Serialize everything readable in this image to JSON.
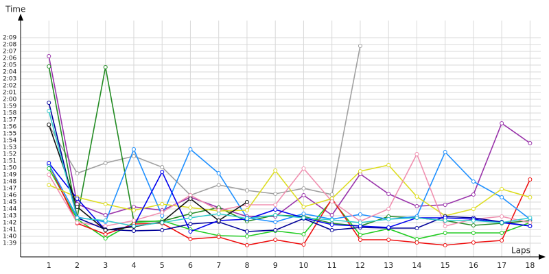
{
  "chart_data": {
    "type": "line",
    "y_label": "Time",
    "x_label": "Laps",
    "x": [
      1,
      2,
      3,
      4,
      5,
      6,
      7,
      8,
      9,
      10,
      11,
      12,
      13,
      14,
      15,
      16,
      17,
      18
    ],
    "xlim": [
      0,
      18.5
    ],
    "xticks": [
      1,
      2,
      3,
      4,
      5,
      6,
      7,
      8,
      9,
      10,
      11,
      12,
      13,
      14,
      15,
      16,
      17,
      18
    ],
    "ylim": [
      97,
      132
    ],
    "yticks": [
      {
        "value": 99,
        "label": "1:39"
      },
      {
        "value": 100,
        "label": "1:40"
      },
      {
        "value": 101,
        "label": "1:41"
      },
      {
        "value": 102,
        "label": "1:42"
      },
      {
        "value": 103,
        "label": "1:43"
      },
      {
        "value": 104,
        "label": "1:44"
      },
      {
        "value": 105,
        "label": "1:45"
      },
      {
        "value": 106,
        "label": "1:46"
      },
      {
        "value": 107,
        "label": "1:47"
      },
      {
        "value": 108,
        "label": "1:48"
      },
      {
        "value": 109,
        "label": "1:49"
      },
      {
        "value": 110,
        "label": "1:50"
      },
      {
        "value": 111,
        "label": "1:51"
      },
      {
        "value": 112,
        "label": "1:52"
      },
      {
        "value": 113,
        "label": "1:53"
      },
      {
        "value": 114,
        "label": "1:54"
      },
      {
        "value": 115,
        "label": "1:55"
      },
      {
        "value": 116,
        "label": "1:56"
      },
      {
        "value": 117,
        "label": "1:57"
      },
      {
        "value": 118,
        "label": "1:58"
      },
      {
        "value": 119,
        "label": "1:59"
      },
      {
        "value": 120,
        "label": "2:00"
      },
      {
        "value": 121,
        "label": "2:01"
      },
      {
        "value": 122,
        "label": "2:02"
      },
      {
        "value": 123,
        "label": "2:03"
      },
      {
        "value": 124,
        "label": "2:04"
      },
      {
        "value": 125,
        "label": "2:05"
      },
      {
        "value": 126,
        "label": "2:06"
      },
      {
        "value": 127,
        "label": "2:07"
      },
      {
        "value": 128,
        "label": "2:08"
      },
      {
        "value": 129,
        "label": "2:09"
      }
    ],
    "grid": true,
    "series": [
      {
        "color": "#a0a0a0",
        "values": [
          116.2,
          109.2,
          110.7,
          111.7,
          110.1,
          106,
          107.5,
          106.7,
          106.2,
          107,
          106.1,
          127.8,
          null,
          null,
          null,
          null,
          null,
          null
        ]
      },
      {
        "color": "#9933aa",
        "values": [
          126.3,
          104.7,
          103.1,
          104.3,
          103.8,
          105.7,
          104.2,
          102.9,
          102.9,
          106,
          103.1,
          109.1,
          106.2,
          104.4,
          104.6,
          106.1,
          116.5,
          113.6
        ]
      },
      {
        "color": "#228b22",
        "values": [
          124.8,
          102.7,
          124.7,
          102.2,
          102.2,
          103.3,
          104.2,
          102.2,
          103.1,
          102.9,
          101.9,
          101.5,
          102.9,
          102.7,
          102.3,
          101.6,
          101.9,
          102.3
        ]
      },
      {
        "color": "#22cc22",
        "values": [
          109.9,
          102.5,
          99.7,
          102,
          102.3,
          101,
          100.1,
          100,
          100.8,
          100.3,
          105.3,
          100.2,
          101.1,
          99.6,
          100.5,
          100.5,
          100.5,
          102
        ]
      },
      {
        "color": "#ee1111",
        "values": [
          110.5,
          101.9,
          100.3,
          101.8,
          101.9,
          99.6,
          99.9,
          98.7,
          99.5,
          98.8,
          105.5,
          99.5,
          99.5,
          99.1,
          98.7,
          99.1,
          99.4,
          108.3
        ]
      },
      {
        "color": "#1e90ff",
        "values": [
          110.5,
          102.8,
          102.1,
          112.7,
          103,
          112.7,
          109.2,
          102.7,
          102.1,
          103.3,
          102.5,
          103.2,
          102.5,
          102.9,
          112.3,
          108,
          105.7,
          102.5
        ]
      },
      {
        "color": "#dddd22",
        "values": [
          107.5,
          105.7,
          104.7,
          103.8,
          104.7,
          104.2,
          103.7,
          103.8,
          109.6,
          104.3,
          105.5,
          109.5,
          110.4,
          105.8,
          103,
          104,
          106.9,
          105.7
        ]
      },
      {
        "color": "#f090b0",
        "values": [
          109,
          102,
          101.5,
          102.3,
          103.5,
          106,
          103.8,
          104.6,
          104.6,
          109.9,
          105.1,
          102.2,
          104,
          112,
          101.5,
          102.5,
          102.9,
          102
        ]
      },
      {
        "color": "#000099",
        "values": [
          119.5,
          102.7,
          101,
          100.8,
          100.9,
          101.8,
          102.1,
          100.7,
          100.9,
          102.6,
          100.9,
          101.3,
          101.2,
          101.2,
          102.9,
          102.7,
          102.1,
          101.5
        ]
      },
      {
        "color": "#0000ee",
        "values": [
          110.7,
          105.5,
          100.9,
          101.5,
          109.4,
          100.7,
          102.3,
          102.5,
          103.9,
          102.7,
          101.7,
          101.5,
          101.3,
          102.7,
          102.7,
          102.5,
          102,
          101.5
        ]
      },
      {
        "color": "#111111",
        "values": [
          116.3,
          104.3,
          100.9,
          101.4,
          102.1,
          105.5,
          102.3,
          105,
          null,
          null,
          null,
          null,
          null,
          null,
          null,
          null,
          null,
          null
        ]
      },
      {
        "color": "#33cccc",
        "values": [
          118.3,
          102.7,
          102.3,
          101.5,
          102,
          102.7,
          103.3,
          102.6,
          103.1,
          102.7,
          102.4,
          102,
          102.5,
          102.7,
          102.3,
          102.3,
          102,
          102.7
        ]
      }
    ]
  }
}
